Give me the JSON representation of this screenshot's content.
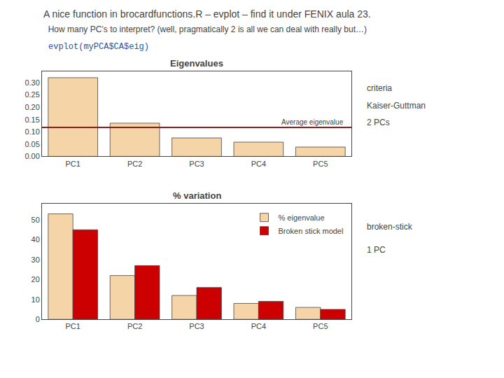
{
  "title": "A nice function in brocardfunctions.R – evplot – find it under FENIX aula 23.",
  "subtitle": "  How many PC’s to interpret? (well, pragmatically 2 is all we can deal with really but…)",
  "annotations": [
    {
      "text": "evplot(myPCA$CA$eig)",
      "color": "#2255aa"
    }
  ],
  "chart_data": [
    {
      "type": "bar",
      "title": "Eigenvalues",
      "categories": [
        "PC1",
        "PC2",
        "PC3",
        "PC4",
        "PC5"
      ],
      "values": [
        0.32,
        0.135,
        0.075,
        0.058,
        0.038
      ],
      "color": "#f5d5a8",
      "reference_lines": [
        {
          "y": 0.118,
          "label": "Average eigenvalue",
          "color": "#8b1a1a"
        }
      ],
      "ylim": [
        0,
        0.345
      ],
      "yticks": [
        {
          "value": 0.0,
          "label": "0.00"
        },
        {
          "value": 0.05,
          "label": "0.05"
        },
        {
          "value": 0.1,
          "label": "0.10"
        },
        {
          "value": 0.15,
          "label": "0.15"
        },
        {
          "value": 0.2,
          "label": "0.20"
        },
        {
          "value": 0.25,
          "label": "0.25"
        },
        {
          "value": 0.3,
          "label": "0.30"
        }
      ],
      "grid": false,
      "annotations": [
        "criteria",
        "Kaiser-Guttman",
        "2 PCs"
      ]
    },
    {
      "type": "bar",
      "title": "% variation",
      "categories": [
        "PC1",
        "PC2",
        "PC3",
        "PC4",
        "PC5"
      ],
      "series": [
        {
          "name": "% eigenvalue",
          "color": "#f5d5a8",
          "values": [
            53,
            22,
            12,
            8,
            6
          ]
        },
        {
          "name": "Broken stick model",
          "color": "#cc0000",
          "values": [
            45,
            27,
            16,
            9,
            5
          ]
        }
      ],
      "ylim": [
        0,
        58
      ],
      "yticks": [
        0,
        10,
        20,
        30,
        40,
        50
      ],
      "grid": false,
      "legend": "upper right",
      "annotations": [
        "broken-stick",
        "1 PC"
      ]
    }
  ]
}
